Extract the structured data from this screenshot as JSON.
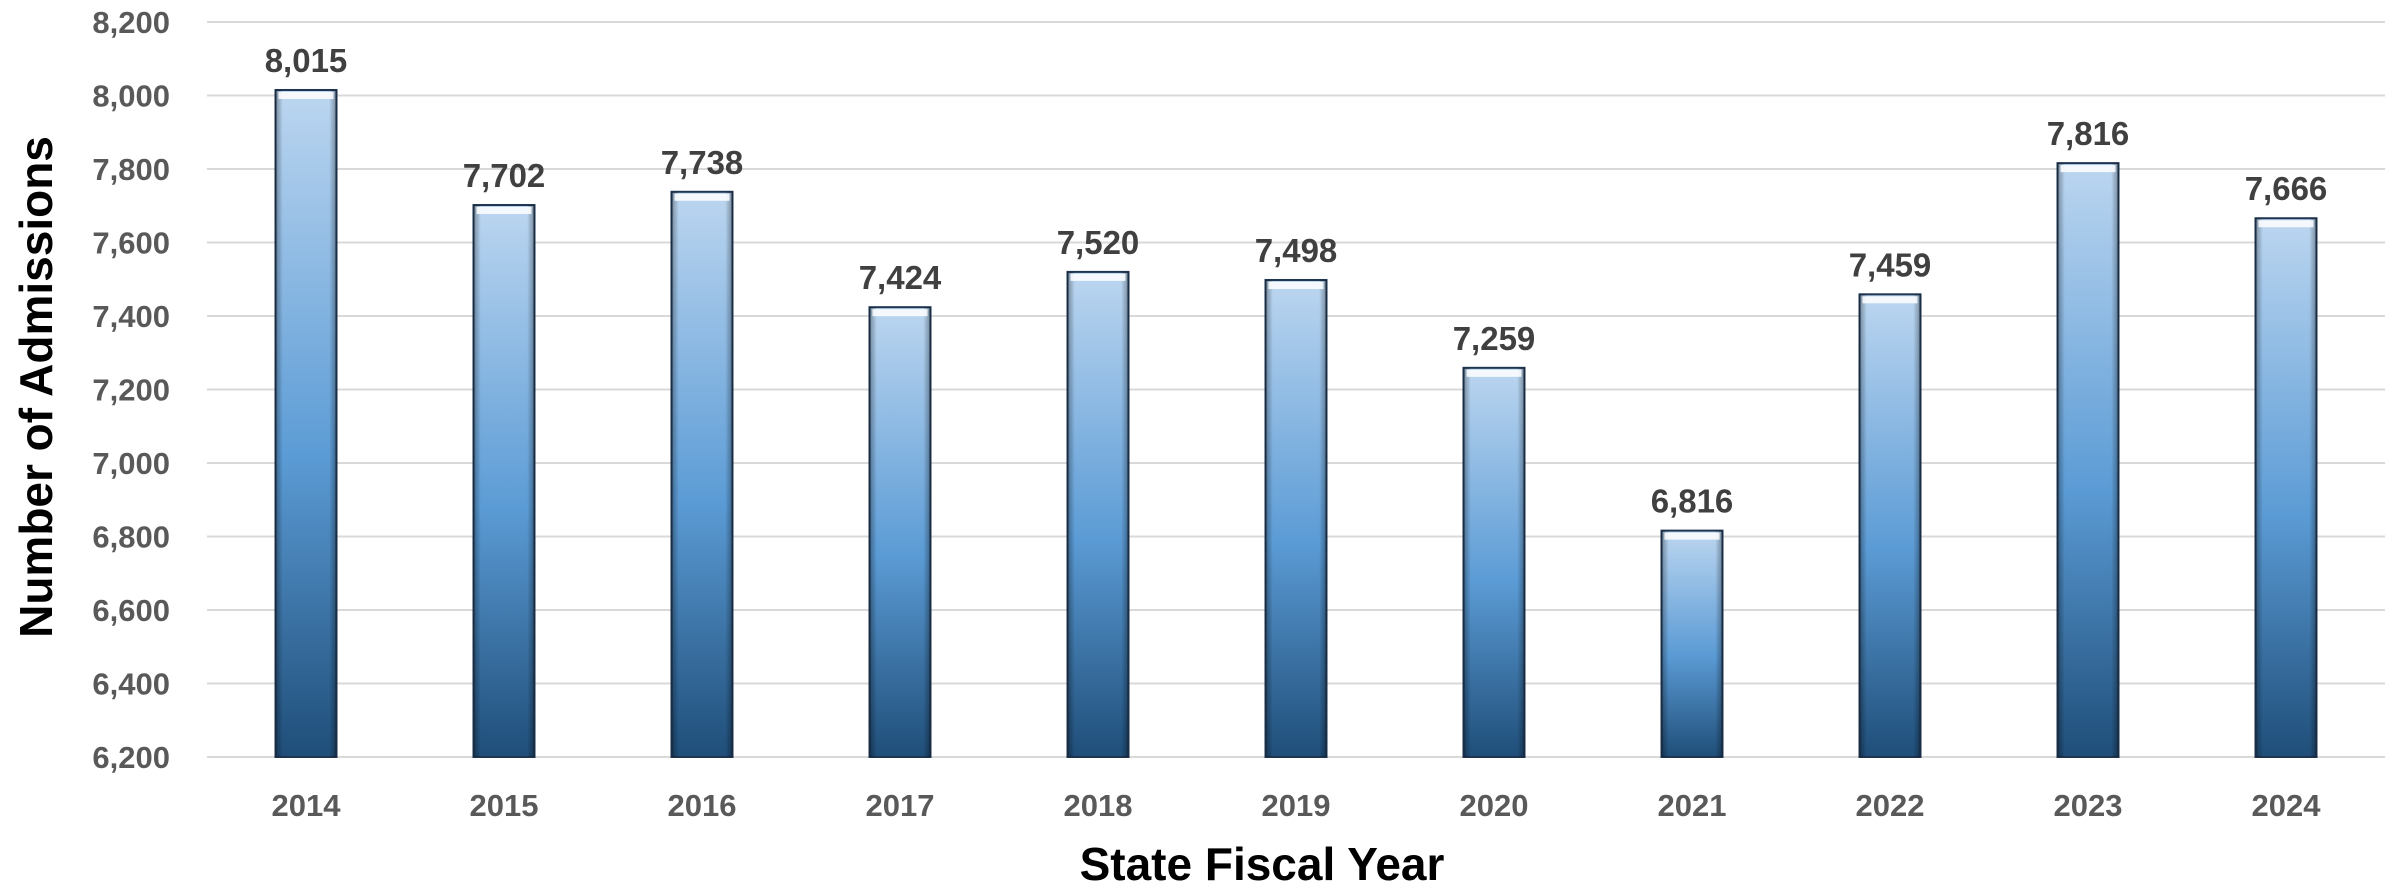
{
  "chart_data": {
    "type": "bar",
    "title": "",
    "xlabel": "State Fiscal Year",
    "ylabel": "Number of Admissions",
    "categories": [
      "2014",
      "2015",
      "2016",
      "2017",
      "2018",
      "2019",
      "2020",
      "2021",
      "2022",
      "2023",
      "2024"
    ],
    "values": [
      8015,
      7702,
      7738,
      7424,
      7520,
      7498,
      7259,
      6816,
      7459,
      7816,
      7666
    ],
    "data_labels": [
      "8,015",
      "7,702",
      "7,738",
      "7,424",
      "7,520",
      "7,498",
      "7,259",
      "6,816",
      "7,459",
      "7,816",
      "7,666"
    ],
    "ylim": [
      6200,
      8200
    ],
    "yticks": [
      6200,
      6400,
      6600,
      6800,
      7000,
      7200,
      7400,
      7600,
      7800,
      8000,
      8200
    ],
    "ytick_labels": [
      "6,200",
      "6,400",
      "6,600",
      "6,800",
      "7,000",
      "7,200",
      "7,400",
      "7,600",
      "7,800",
      "8,000",
      "8,200"
    ],
    "grid": true,
    "legend": "none",
    "colors": {
      "bar_top": "#bcd6f0",
      "bar_mid": "#5b9bd5",
      "bar_bottom": "#1f4e79",
      "bar_edge": "#1f3550",
      "grid": "#d9d9d9"
    }
  }
}
